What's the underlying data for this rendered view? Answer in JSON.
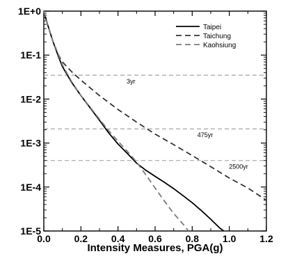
{
  "chart_data": {
    "type": "line",
    "title": "",
    "xlabel": "Intensity Measures, PGA(g)",
    "ylabel": "",
    "xlim": [
      0.0,
      1.2
    ],
    "ylim": [
      1e-05,
      1
    ],
    "yscale": "log",
    "grid": false,
    "legend_position": "top-right",
    "x_ticks": [
      {
        "value": 0.0,
        "label": "0.0"
      },
      {
        "value": 0.2,
        "label": "0.2"
      },
      {
        "value": 0.4,
        "label": "0.4"
      },
      {
        "value": 0.6,
        "label": "0.6"
      },
      {
        "value": 0.8,
        "label": "0.8"
      },
      {
        "value": 1.0,
        "label": "1.0"
      },
      {
        "value": 1.2,
        "label": "1.2"
      }
    ],
    "y_ticks": [
      {
        "value": 1,
        "label": "1E+0"
      },
      {
        "value": 0.1,
        "label": "1E-1"
      },
      {
        "value": 0.01,
        "label": "1E-2"
      },
      {
        "value": 0.001,
        "label": "1E-3"
      },
      {
        "value": 0.0001,
        "label": "1E-4"
      },
      {
        "value": 1e-05,
        "label": "1E-5"
      }
    ],
    "series": [
      {
        "name": "Taipei",
        "color": "#000000",
        "style": "solid",
        "points": [
          [
            0.0,
            1.0
          ],
          [
            0.02,
            0.5
          ],
          [
            0.05,
            0.2
          ],
          [
            0.08,
            0.09
          ],
          [
            0.1,
            0.055
          ],
          [
            0.15,
            0.024
          ],
          [
            0.2,
            0.012
          ],
          [
            0.25,
            0.0063
          ],
          [
            0.3,
            0.0033
          ],
          [
            0.35,
            0.0017
          ],
          [
            0.4,
            0.00095
          ],
          [
            0.45,
            0.00058
          ],
          [
            0.5,
            0.00035
          ],
          [
            0.55,
            0.00024
          ],
          [
            0.6,
            0.000175
          ],
          [
            0.65,
            0.000128
          ],
          [
            0.7,
            9.2e-05
          ],
          [
            0.75,
            6.4e-05
          ],
          [
            0.8,
            4.4e-05
          ],
          [
            0.85,
            2.9e-05
          ],
          [
            0.9,
            1.85e-05
          ],
          [
            0.95,
            1.15e-05
          ],
          [
            0.97,
            1e-05
          ]
        ]
      },
      {
        "name": "Taichung",
        "color": "#333333",
        "style": "dashed",
        "points": [
          [
            0.0,
            1.0
          ],
          [
            0.02,
            0.5
          ],
          [
            0.05,
            0.2
          ],
          [
            0.08,
            0.1
          ],
          [
            0.1,
            0.07
          ],
          [
            0.15,
            0.042
          ],
          [
            0.2,
            0.027
          ],
          [
            0.3,
            0.012
          ],
          [
            0.4,
            0.0058
          ],
          [
            0.5,
            0.003
          ],
          [
            0.6,
            0.0016
          ],
          [
            0.7,
            0.00092
          ],
          [
            0.8,
            0.00052
          ],
          [
            0.9,
            0.00029
          ],
          [
            1.0,
            0.00016
          ],
          [
            1.1,
            9.5e-05
          ],
          [
            1.2,
            5e-05
          ]
        ]
      },
      {
        "name": "Kaohsiung",
        "color": "#7a7a7a",
        "style": "dashed",
        "points": [
          [
            0.0,
            1.0
          ],
          [
            0.02,
            0.5
          ],
          [
            0.05,
            0.2
          ],
          [
            0.08,
            0.1
          ],
          [
            0.1,
            0.06
          ],
          [
            0.15,
            0.025
          ],
          [
            0.2,
            0.012
          ],
          [
            0.25,
            0.0065
          ],
          [
            0.3,
            0.0035
          ],
          [
            0.35,
            0.0019
          ],
          [
            0.4,
            0.0011
          ],
          [
            0.45,
            0.00065
          ],
          [
            0.5,
            0.00037
          ],
          [
            0.55,
            0.00019
          ],
          [
            0.6,
            9.5e-05
          ],
          [
            0.65,
            4.8e-05
          ],
          [
            0.7,
            2.5e-05
          ],
          [
            0.75,
            1.45e-05
          ],
          [
            0.78,
            1e-05
          ]
        ]
      }
    ],
    "reference_lines": [
      {
        "label": "3yr",
        "y": 0.035,
        "label_x": 0.47
      },
      {
        "label": "475yr",
        "y": 0.0021,
        "label_x": 0.87
      },
      {
        "label": "2500yr",
        "y": 0.0004,
        "label_x": 1.05
      }
    ]
  }
}
